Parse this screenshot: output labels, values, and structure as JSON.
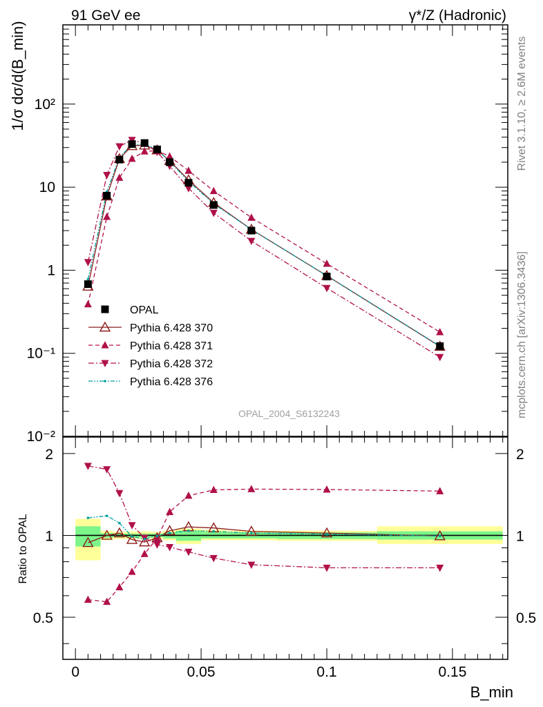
{
  "header": {
    "left": "91 GeV ee",
    "right": "γ*/Z (Hadronic)"
  },
  "side_texts": {
    "rivet": "Rivet 3.1.10, ≥ 2.6M events",
    "mcplots": "mcplots.cern.ch [arXiv:1306.3436]"
  },
  "chart_data": [
    {
      "type": "scatter",
      "panel": "main",
      "ylabel": "1/σ dσ/d(B_min)",
      "yscale": "log",
      "ylim": [
        0.01,
        900
      ],
      "xlim": [
        -0.005,
        0.172
      ],
      "yticks": [
        {
          "value": 0.01,
          "label": "10⁻²"
        },
        {
          "value": 0.1,
          "label": "10⁻¹"
        },
        {
          "value": 1,
          "label": "1"
        },
        {
          "value": 10,
          "label": "10"
        },
        {
          "value": 100,
          "label": "10²"
        }
      ],
      "watermark": "OPAL_2004_S6132243",
      "legend_position": "middle-left",
      "x": [
        0.005,
        0.0125,
        0.0175,
        0.0225,
        0.0275,
        0.0325,
        0.0375,
        0.045,
        0.055,
        0.07,
        0.1,
        0.145
      ],
      "series": [
        {
          "name": "OPAL",
          "color": "#000000",
          "marker": "square",
          "line": "none",
          "values": [
            0.68,
            7.9,
            21.5,
            33,
            34,
            28.5,
            20,
            11.3,
            6.1,
            3.0,
            0.84,
            0.122
          ]
        },
        {
          "name": "Pythia 6.428 370",
          "color": "#8b1a1a",
          "marker": "open-triangle",
          "line": "solid",
          "values": [
            0.64,
            7.8,
            22.0,
            31.5,
            32,
            28.0,
            20.8,
            12.2,
            6.5,
            3.1,
            0.86,
            0.121
          ]
        },
        {
          "name": "Pythia 6.428 371",
          "color": "#b0104a",
          "marker": "triangle",
          "line": "dashed",
          "values": [
            0.39,
            4.4,
            13.0,
            22.0,
            27.0,
            27.5,
            23.5,
            15.8,
            9.0,
            4.3,
            1.2,
            0.18
          ]
        },
        {
          "name": "Pythia 6.428 372",
          "color": "#b0104a",
          "marker": "triangle-down",
          "line": "dashdot",
          "values": [
            1.25,
            14.0,
            31.0,
            37.0,
            33.5,
            26.5,
            18.0,
            9.7,
            4.9,
            2.25,
            0.61,
            0.09
          ]
        },
        {
          "name": "Pythia 6.428 376",
          "color": "#00a0a0",
          "marker": "dot",
          "line": "dashdotdot",
          "values": [
            0.78,
            8.8,
            23.0,
            32.5,
            33.0,
            28.3,
            20.3,
            11.8,
            6.3,
            3.1,
            0.86,
            0.122
          ]
        }
      ]
    },
    {
      "type": "scatter",
      "panel": "ratio",
      "xlabel": "B_min",
      "ylabel": "Ratio to OPAL",
      "ylim": [
        0.35,
        2.3
      ],
      "xlim": [
        -0.005,
        0.172
      ],
      "xticks": [
        {
          "value": 0,
          "label": "0"
        },
        {
          "value": 0.05,
          "label": "0.05"
        },
        {
          "value": 0.1,
          "label": "0.1"
        },
        {
          "value": 0.15,
          "label": "0.15"
        }
      ],
      "yticks": [
        {
          "value": 0.5,
          "label": "0.5"
        },
        {
          "value": 1,
          "label": "1"
        },
        {
          "value": 2,
          "label": "2"
        }
      ],
      "bands": [
        {
          "x0": 0.0,
          "x1": 0.01,
          "stat": [
            0.91,
            1.08
          ],
          "total": [
            0.81,
            1.15
          ]
        },
        {
          "x0": 0.01,
          "x1": 0.015,
          "stat": [
            0.98,
            1.02
          ],
          "total": [
            0.96,
            1.04
          ]
        },
        {
          "x0": 0.015,
          "x1": 0.02,
          "stat": [
            0.985,
            1.015
          ],
          "total": [
            0.97,
            1.03
          ]
        },
        {
          "x0": 0.02,
          "x1": 0.025,
          "stat": [
            0.985,
            1.015
          ],
          "total": [
            0.97,
            1.035
          ]
        },
        {
          "x0": 0.025,
          "x1": 0.03,
          "stat": [
            0.985,
            1.015
          ],
          "total": [
            0.97,
            1.035
          ]
        },
        {
          "x0": 0.03,
          "x1": 0.035,
          "stat": [
            0.985,
            1.015
          ],
          "total": [
            0.97,
            1.03
          ]
        },
        {
          "x0": 0.035,
          "x1": 0.04,
          "stat": [
            0.975,
            1.025
          ],
          "total": [
            0.96,
            1.04
          ]
        },
        {
          "x0": 0.04,
          "x1": 0.05,
          "stat": [
            0.955,
            1.04
          ],
          "total": [
            0.93,
            1.06
          ]
        },
        {
          "x0": 0.05,
          "x1": 0.06,
          "stat": [
            0.975,
            1.03
          ],
          "total": [
            0.96,
            1.05
          ]
        },
        {
          "x0": 0.06,
          "x1": 0.08,
          "stat": [
            0.975,
            1.025
          ],
          "total": [
            0.96,
            1.04
          ]
        },
        {
          "x0": 0.08,
          "x1": 0.12,
          "stat": [
            0.97,
            1.025
          ],
          "total": [
            0.955,
            1.04
          ]
        },
        {
          "x0": 0.12,
          "x1": 0.17,
          "stat": [
            0.965,
            1.035
          ],
          "total": [
            0.93,
            1.08
          ]
        }
      ],
      "x": [
        0.005,
        0.0125,
        0.0175,
        0.0225,
        0.0275,
        0.0325,
        0.0375,
        0.045,
        0.055,
        0.07,
        0.1,
        0.145
      ],
      "series": [
        {
          "name": "Pythia 6.428 370",
          "color": "#8b1a1a",
          "marker": "open-triangle",
          "line": "solid",
          "values": [
            0.94,
            1.0,
            1.02,
            0.965,
            0.945,
            0.98,
            1.04,
            1.075,
            1.065,
            1.035,
            1.02,
            0.995
          ]
        },
        {
          "name": "Pythia 6.428 371",
          "color": "#b0104a",
          "marker": "triangle",
          "line": "dashed",
          "values": [
            0.58,
            0.57,
            0.645,
            0.735,
            0.855,
            0.975,
            1.22,
            1.4,
            1.47,
            1.48,
            1.475,
            1.455
          ]
        },
        {
          "name": "Pythia 6.428 372",
          "color": "#b0104a",
          "marker": "triangle-down",
          "line": "dashdot",
          "values": [
            1.8,
            1.75,
            1.43,
            1.09,
            0.98,
            0.925,
            0.905,
            0.87,
            0.825,
            0.78,
            0.76,
            0.76
          ]
        },
        {
          "name": "Pythia 6.428 376",
          "color": "#00a0a0",
          "marker": "dot",
          "line": "dashdotdot",
          "values": [
            1.16,
            1.18,
            1.11,
            0.99,
            0.97,
            0.995,
            1.02,
            1.04,
            1.035,
            1.02,
            1.01,
            0.995
          ]
        }
      ]
    }
  ]
}
